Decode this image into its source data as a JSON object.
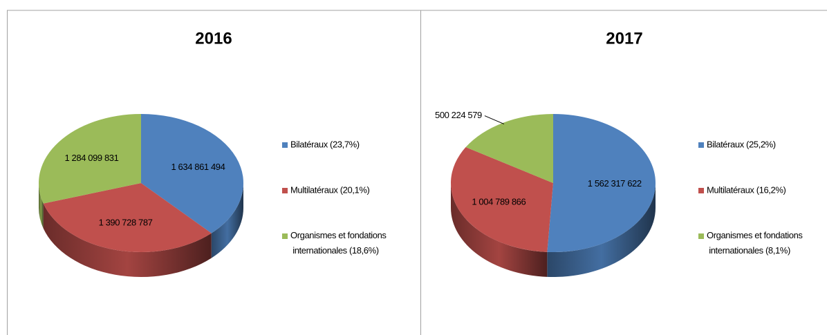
{
  "chart_data": [
    {
      "type": "pie",
      "title": "2016",
      "categories": [
        "Bilatéraux (23,7%)",
        "Multilatéraux (20,1%)",
        "Organismes et fondations internationales (18,6%)"
      ],
      "values": [
        1634861494,
        1390728787,
        1284099831
      ],
      "value_labels": [
        "1 634 861 494",
        "1 390 728 787",
        "1 284 099 831"
      ],
      "colors": [
        "#4f81bd",
        "#c0504d",
        "#9bbb59"
      ],
      "legend": "right"
    },
    {
      "type": "pie",
      "title": "2017",
      "categories": [
        "Bilatéraux (25,2%)",
        "Multilatéraux (16,2%)",
        "Organismes et fondations internationales (8,1%)"
      ],
      "values": [
        1562317622,
        1004789866,
        500224579
      ],
      "value_labels": [
        "1 562 317 622",
        "1 004 789 866",
        "500 224 579"
      ],
      "colors": [
        "#4f81bd",
        "#c0504d",
        "#9bbb59"
      ],
      "legend": "right"
    }
  ]
}
